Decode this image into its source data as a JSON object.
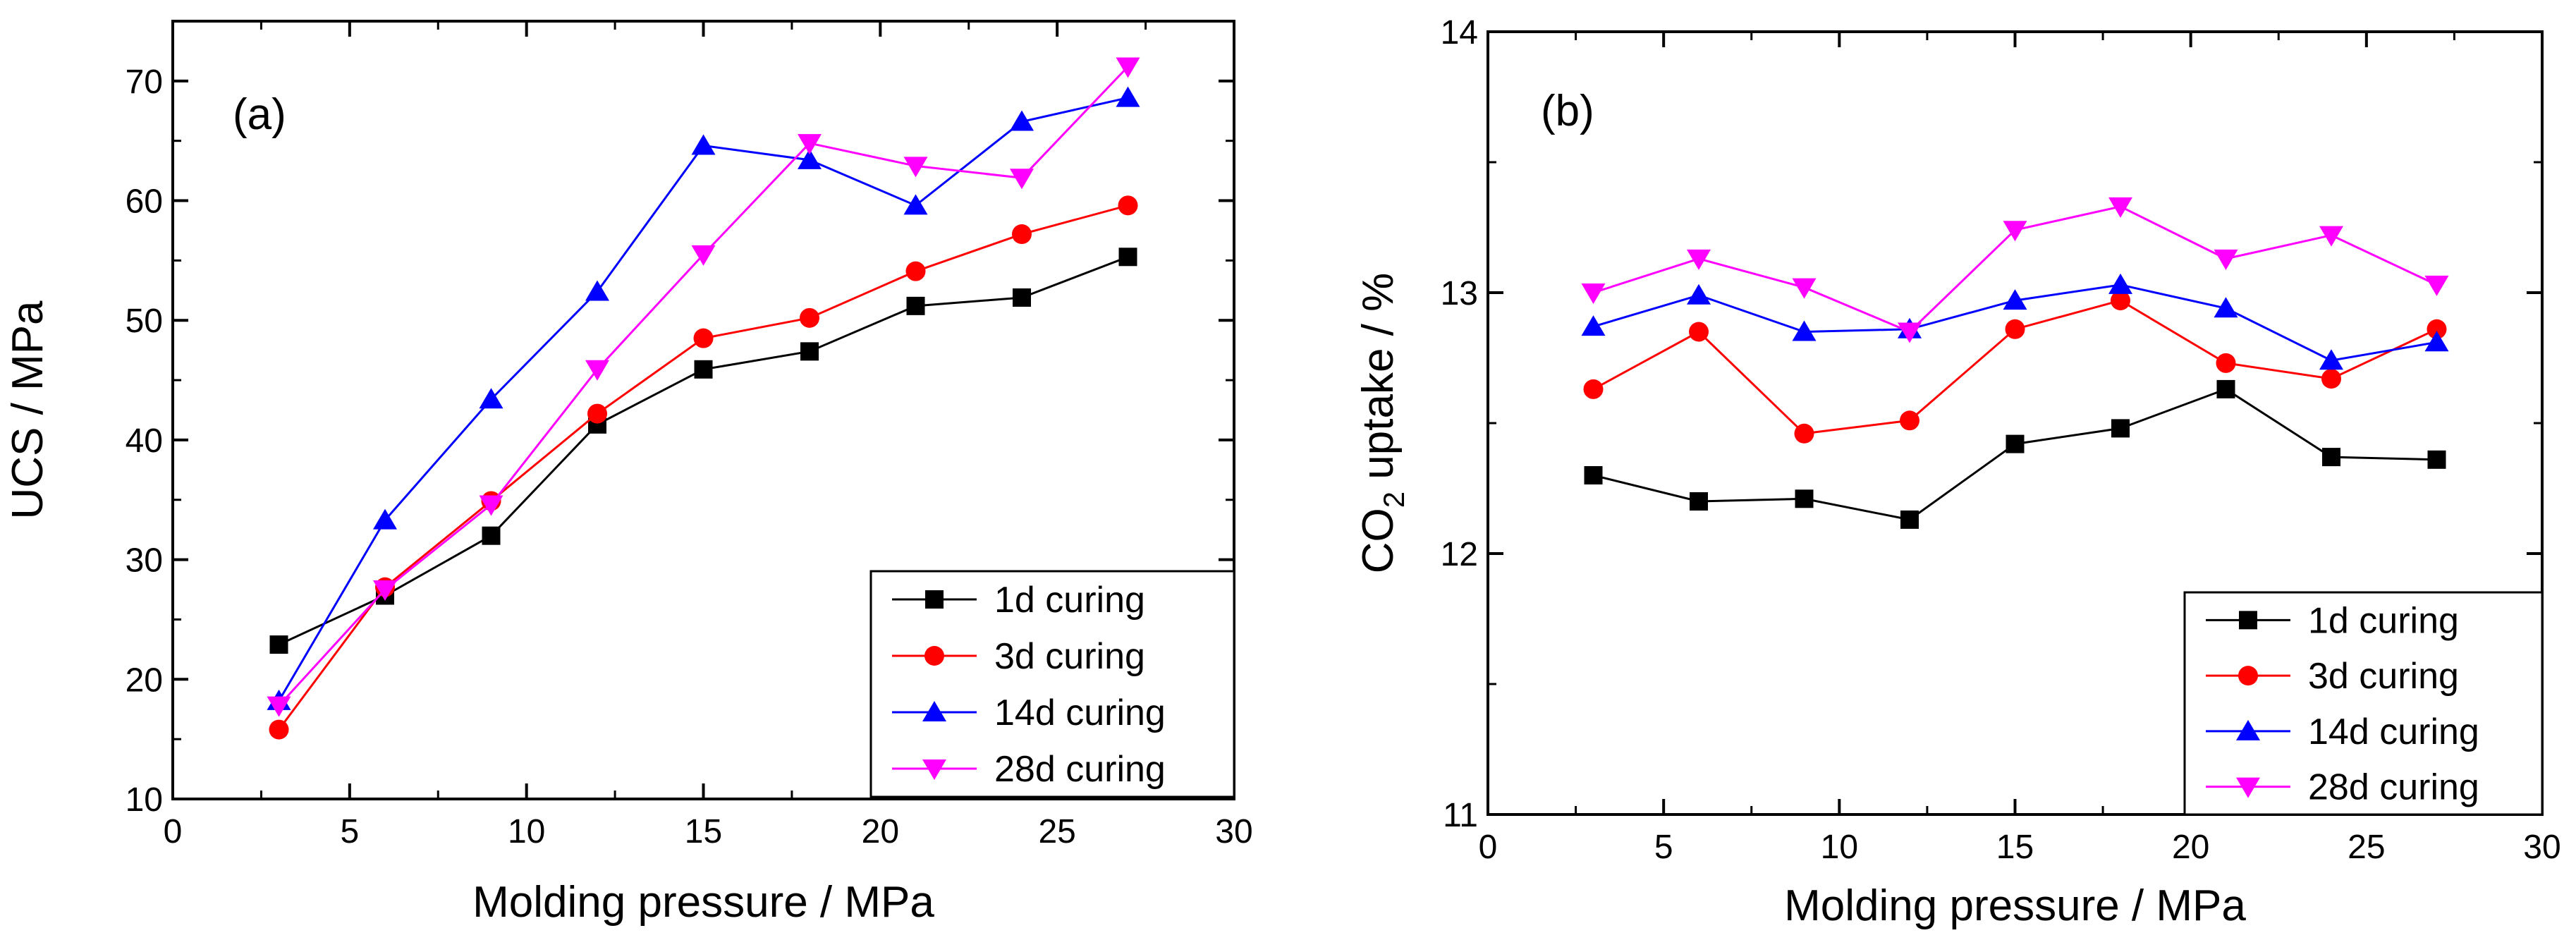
{
  "chart_data": [
    {
      "type": "line",
      "panel_label": "(a)",
      "xlabel": "Molding pressure / MPa",
      "ylabel": "UCS / MPa",
      "xlim": [
        0,
        30
      ],
      "ylim": [
        10,
        75
      ],
      "xticks": [
        0,
        5,
        10,
        15,
        20,
        25,
        30
      ],
      "yticks": [
        10,
        20,
        30,
        40,
        50,
        60,
        70
      ],
      "x": [
        3,
        6,
        9,
        12,
        15,
        18,
        21,
        24,
        27
      ],
      "legend_position": "bottom-right",
      "series": [
        {
          "name": "1d curing",
          "color": "#000000",
          "marker": "square",
          "values": [
            22.9,
            27.0,
            32.0,
            41.3,
            45.9,
            47.4,
            51.2,
            51.9,
            55.3
          ]
        },
        {
          "name": "3d curing",
          "color": "#ff0000",
          "marker": "circle",
          "values": [
            15.8,
            27.7,
            34.9,
            42.2,
            48.5,
            50.2,
            54.1,
            57.2,
            59.6
          ]
        },
        {
          "name": "14d curing",
          "color": "#0000ff",
          "marker": "triangle-up",
          "values": [
            18.2,
            33.3,
            43.4,
            52.4,
            64.6,
            63.4,
            59.6,
            66.6,
            68.6
          ]
        },
        {
          "name": "28d curing",
          "color": "#ff00ff",
          "marker": "triangle-down",
          "values": [
            17.8,
            27.5,
            34.6,
            45.9,
            55.5,
            64.8,
            62.9,
            61.9,
            71.2
          ]
        }
      ]
    },
    {
      "type": "line",
      "panel_label": "(b)",
      "xlabel": "Molding pressure / MPa",
      "ylabel_main": "CO",
      "ylabel_sub": "2",
      "ylabel_rest": " uptake / %",
      "xlim": [
        0,
        30
      ],
      "ylim": [
        11,
        14
      ],
      "xticks": [
        0,
        5,
        10,
        15,
        20,
        25,
        30
      ],
      "yticks": [
        11,
        12,
        13,
        14
      ],
      "x": [
        3,
        6,
        9,
        12,
        15,
        18,
        21,
        24,
        27
      ],
      "legend_position": "bottom-right",
      "series": [
        {
          "name": "1d curing",
          "color": "#000000",
          "marker": "square",
          "values": [
            12.3,
            12.2,
            12.21,
            12.13,
            12.42,
            12.48,
            12.63,
            12.37,
            12.36
          ]
        },
        {
          "name": "3d curing",
          "color": "#ff0000",
          "marker": "circle",
          "values": [
            12.63,
            12.85,
            12.46,
            12.51,
            12.86,
            12.97,
            12.73,
            12.67,
            12.86
          ]
        },
        {
          "name": "14d curing",
          "color": "#0000ff",
          "marker": "triangle-up",
          "values": [
            12.87,
            12.99,
            12.85,
            12.86,
            12.97,
            13.03,
            12.94,
            12.74,
            12.81
          ]
        },
        {
          "name": "28d curing",
          "color": "#ff00ff",
          "marker": "triangle-down",
          "values": [
            13.0,
            13.13,
            13.02,
            12.85,
            13.24,
            13.33,
            13.13,
            13.22,
            13.03
          ]
        }
      ]
    }
  ]
}
